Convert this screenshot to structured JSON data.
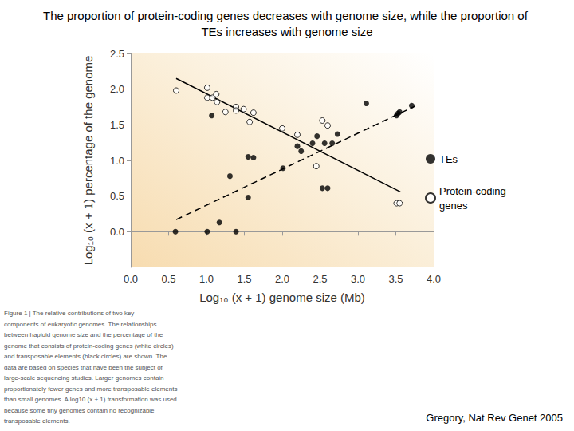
{
  "chart_data": {
    "type": "scatter",
    "title": "The proportion of protein-coding genes decreases with genome size, while the proportion of TEs increases with genome size",
    "x_label": "Log₁₀ (x + 1) genome size (Mb)",
    "y_label": "Log₁₀ (x + 1) percentage of the genome",
    "xlim": [
      0,
      4
    ],
    "xticks": [
      {
        "value": 0,
        "label": "0.0"
      },
      {
        "value": 0.5,
        "label": "0.5"
      },
      {
        "value": 1,
        "label": "1.0"
      },
      {
        "value": 1.5,
        "label": "1.5"
      },
      {
        "value": 2,
        "label": "2.0"
      },
      {
        "value": 2.5,
        "label": "2.5"
      },
      {
        "value": 3,
        "label": "3.0"
      },
      {
        "value": 3.5,
        "label": "3.5"
      },
      {
        "value": 4,
        "label": "4.0"
      }
    ],
    "ylim": [
      -0.5,
      2.5
    ],
    "yticks": [
      {
        "value": 0,
        "label": "0.0"
      },
      {
        "value": 0.5,
        "label": "0.5"
      },
      {
        "value": 1,
        "label": "1.0"
      },
      {
        "value": 1.5,
        "label": "1.5"
      },
      {
        "value": 2,
        "label": "2.0"
      },
      {
        "value": 2.5,
        "label": "2.5"
      }
    ],
    "grid": false,
    "legend": "right",
    "series": [
      {
        "name": "TEs",
        "color": "#000000",
        "marker": "filled_circle",
        "line_style": "dashed",
        "x": [
          0.59,
          1.01,
          1.39,
          1.17,
          1.07,
          1.31,
          1.55,
          1.62,
          1.55,
          2.01,
          2.2,
          2.25,
          2.4,
          2.46,
          2.53,
          2.6,
          2.56,
          2.66,
          2.73,
          3.11,
          3.51,
          3.53,
          3.55,
          3.71
        ],
        "values": [
          0.0,
          0.0,
          0.0,
          0.13,
          1.63,
          0.78,
          1.05,
          1.04,
          0.48,
          0.89,
          1.2,
          1.13,
          1.24,
          1.34,
          0.61,
          0.61,
          1.24,
          1.24,
          1.37,
          1.8,
          1.63,
          1.66,
          1.68,
          1.77
        ],
        "fit": {
          "x": [
            0.6,
            3.75
          ],
          "values": [
            0.17,
            1.76
          ]
        }
      },
      {
        "name": "Protein-coding genes",
        "color": "#000000",
        "marker": "open_circle",
        "line_style": "solid",
        "x": [
          0.6,
          1.01,
          1.01,
          1.08,
          1.13,
          1.14,
          1.25,
          1.39,
          1.39,
          1.49,
          1.57,
          1.62,
          2.0,
          2.2,
          2.53,
          2.6,
          2.45,
          3.51,
          3.55
        ],
        "values": [
          1.98,
          2.02,
          1.88,
          1.88,
          1.93,
          1.82,
          1.68,
          1.75,
          1.7,
          1.72,
          1.54,
          1.67,
          1.45,
          1.36,
          1.56,
          1.49,
          0.92,
          0.4,
          0.4
        ],
        "fit": {
          "x": [
            0.6,
            3.56
          ],
          "values": [
            2.15,
            0.56
          ]
        }
      }
    ],
    "caption": [
      "Figure 1 | The relative contributions of two key",
      "components of eukaryotic genomes. The relationships",
      "between haploid genome size and the percentage of the",
      "genome that consists of protein-coding genes (white circles)",
      "and transposable elements (black circles) are shown. The",
      "data are based on species that have been the subject of",
      "large-scale sequencing studies. Larger genomes contain",
      "proportionately fewer genes and more transposable elements",
      "than small genomes. A log10 (x + 1) transformation was used",
      "because some tiny genomes contain no recognizable",
      "transposable elements."
    ],
    "source": "Gregory, Nat Rev Genet 2005"
  }
}
